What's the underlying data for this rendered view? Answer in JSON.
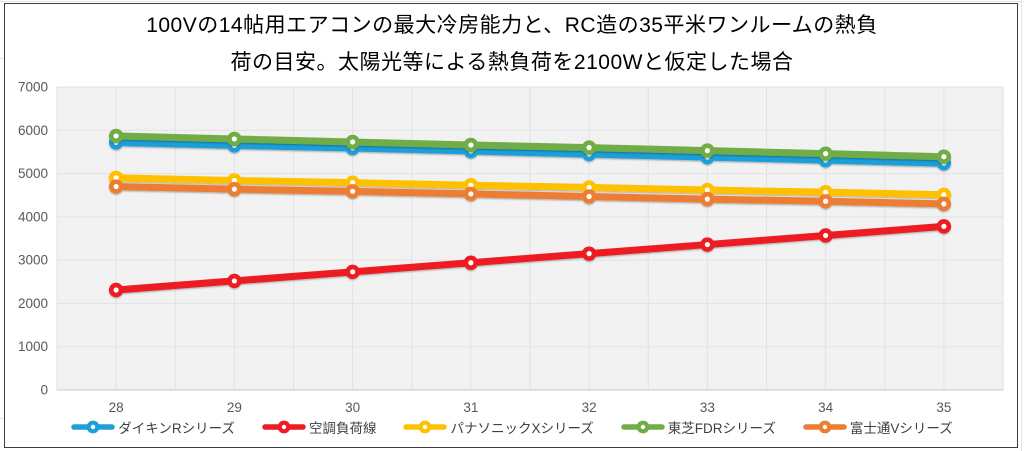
{
  "chart": {
    "title_lines": [
      "100Vの14帖用エアコンの最大冷房能力と、RC造の35平米ワンルームの熱負",
      "荷の目安。太陽光等による熱負荷を2100Wと仮定した場合"
    ]
  },
  "chart_data": {
    "type": "line",
    "title": "100Vの14帖用エアコンの最大冷房能力と、RC造の35平米ワンルームの熱負荷の目安。太陽光等による熱負荷を2100Wと仮定した場合",
    "xlabel": "",
    "ylabel": "",
    "x": [
      28,
      29,
      30,
      31,
      32,
      33,
      34,
      35
    ],
    "xtick_labels": [
      "28",
      "29",
      "30",
      "31",
      "32",
      "33",
      "34",
      "35"
    ],
    "ylim": [
      0,
      7000
    ],
    "ytick_step": 1000,
    "ytick_labels": [
      "0",
      "1000",
      "2000",
      "3000",
      "4000",
      "5000",
      "6000",
      "7000"
    ],
    "grid": true,
    "legend_position": "bottom",
    "series": [
      {
        "name": "ダイキンRシリーズ",
        "color": "#1F9FD8",
        "values": [
          5720,
          5650,
          5590,
          5520,
          5450,
          5380,
          5310,
          5240
        ]
      },
      {
        "name": "空調負荷線",
        "color": "#ED1C24",
        "values": [
          2310,
          2520,
          2730,
          2940,
          3150,
          3360,
          3570,
          3780
        ]
      },
      {
        "name": "パナソニックXシリーズ",
        "color": "#FFC000",
        "values": [
          4900,
          4840,
          4790,
          4730,
          4680,
          4620,
          4570,
          4510
        ]
      },
      {
        "name": "東芝FDRシリーズ",
        "color": "#70AD47",
        "values": [
          5870,
          5800,
          5730,
          5660,
          5600,
          5530,
          5460,
          5390
        ]
      },
      {
        "name": "富士通Vシリーズ",
        "color": "#ED7D31",
        "values": [
          4700,
          4640,
          4590,
          4530,
          4470,
          4410,
          4360,
          4300
        ]
      }
    ]
  }
}
